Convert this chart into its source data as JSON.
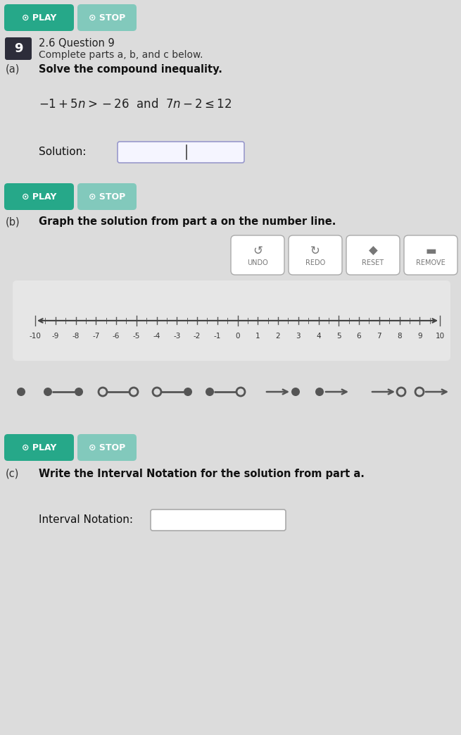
{
  "bg_color": "#dcdcdc",
  "play_btn_color": "#26a889",
  "stop_btn_color": "#82c9bc",
  "question_num_bg": "#2d2d3a",
  "title_line1": "2.6 Question 9",
  "title_line2": "Complete parts a, b, and c below.",
  "part_a_text": "Solve the compound inequality.",
  "inequality": "$-1+5n > -26$  and  $7n - 2 \\leq 12$",
  "solution_label": "Solution:",
  "part_b_text": "Graph the solution from part a on the number line.",
  "undo_label": "UNDO",
  "redo_label": "REDO",
  "reset_label": "RESET",
  "remove_label": "REMOVE",
  "part_c_text": "Write the Interval Notation for the solution from part a.",
  "interval_label": "Interval Notation:",
  "number_line_bg": "#e6e6e6",
  "icon_color": "#555555",
  "btn_icon_color": "#777777"
}
